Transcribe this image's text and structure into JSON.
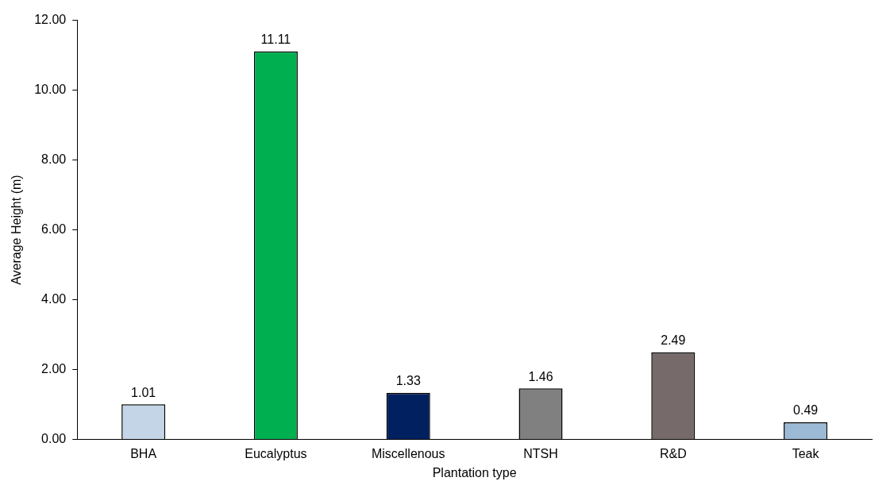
{
  "chart_data": {
    "type": "bar",
    "xlabel": "Plantation type",
    "ylabel": "Average Height (m)",
    "categories": [
      "BHA",
      "Eucalyptus",
      "Miscellenous",
      "NTSH",
      "R&D",
      "Teak"
    ],
    "values": [
      1.01,
      11.11,
      1.33,
      1.46,
      2.49,
      0.49
    ],
    "colors": [
      "#c3d5e6",
      "#00b050",
      "#002060",
      "#808080",
      "#766a6a",
      "#9cbad6"
    ],
    "ylim": [
      0,
      12
    ],
    "yticks": [
      {
        "value": 0,
        "label": "0.00"
      },
      {
        "value": 2,
        "label": "2.00"
      },
      {
        "value": 4,
        "label": "4.00"
      },
      {
        "value": 6,
        "label": "6.00"
      },
      {
        "value": 8,
        "label": "8.00"
      },
      {
        "value": 10,
        "label": "10.00"
      },
      {
        "value": 12,
        "label": "12.00"
      }
    ],
    "grid": false,
    "legend": false,
    "data_labels": true
  }
}
